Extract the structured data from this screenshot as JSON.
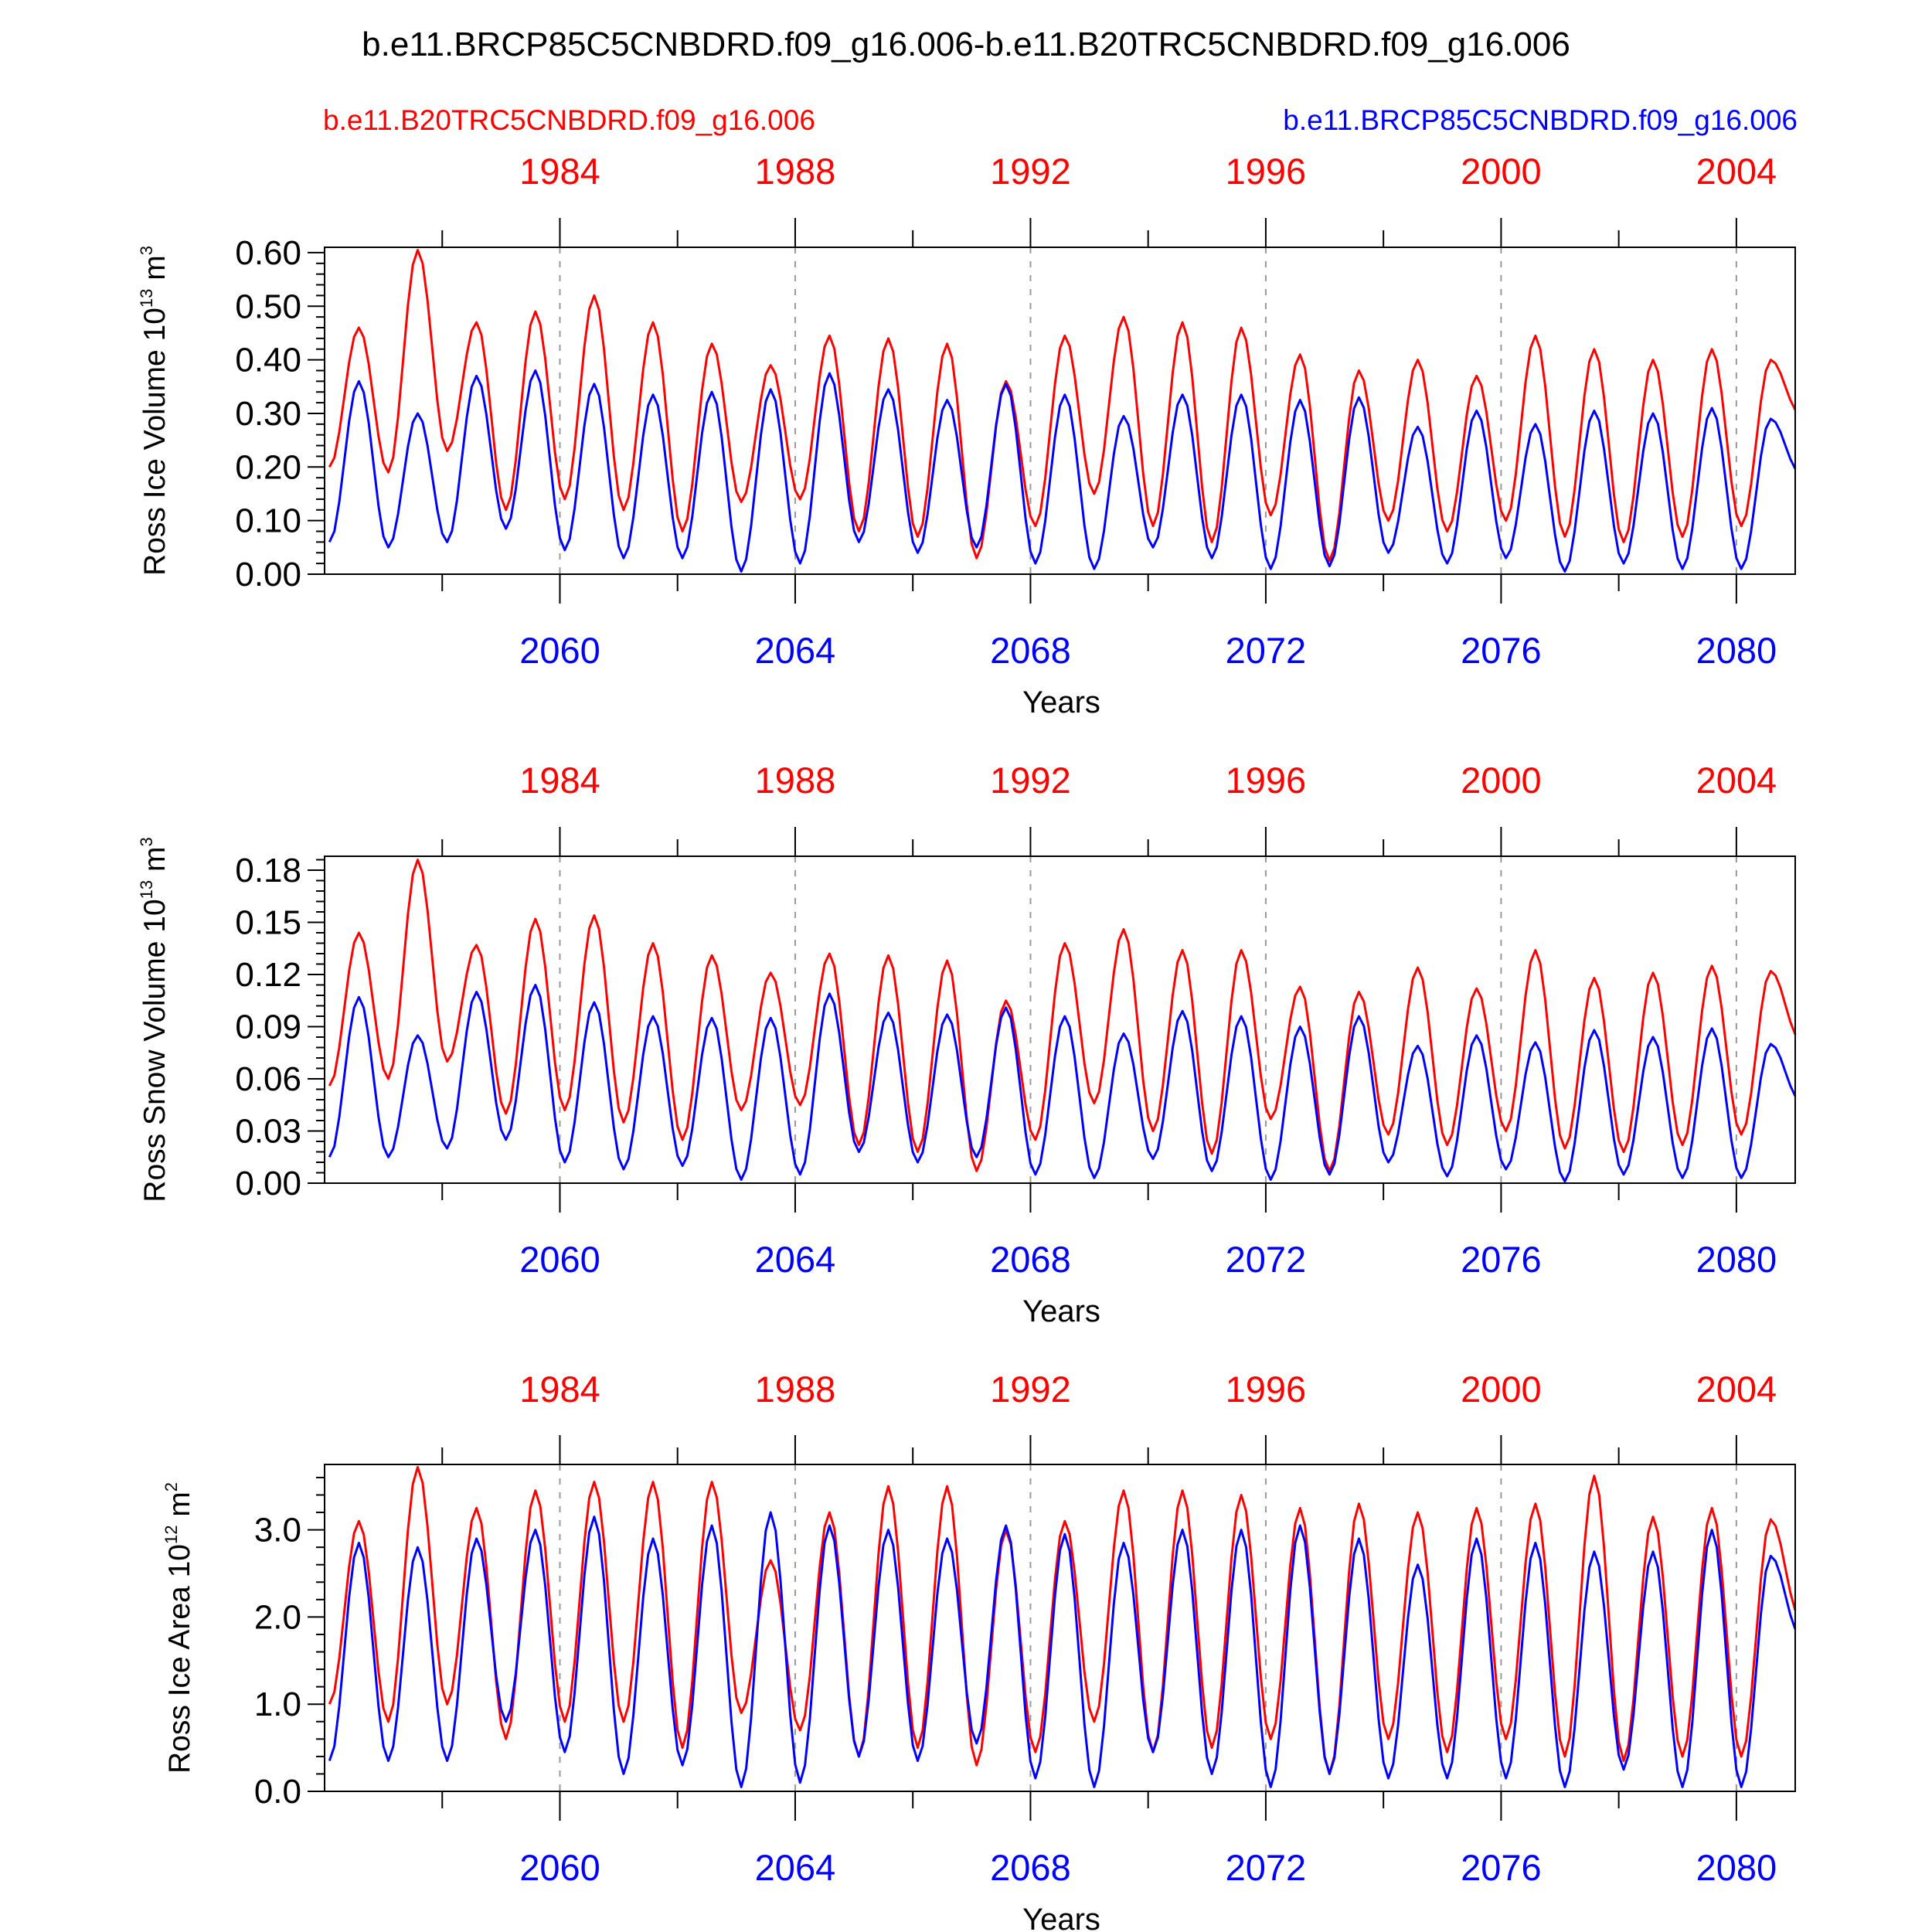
{
  "title": "b.e11.BRCP85C5CNBDRD.f09_g16.006-b.e11.B20TRC5CNBDRD.f09_g16.006",
  "legend": {
    "red_label": "b.e11.B20TRC5CNBDRD.f09_g16.006",
    "blue_label": "b.e11.BRCP85C5CNBDRD.f09_g16.006"
  },
  "colors": {
    "red": "#ff0000",
    "blue": "#0000ff",
    "axis": "#000000",
    "grid": "#999999"
  },
  "chart_data": [
    {
      "type": "line",
      "name": "ross-ice-volume",
      "ylabel": "Ross Ice Volume 10",
      "ylabel_exp": "13",
      "ylabel_unit": " m",
      "ylabel_unit_exp": "3",
      "xlabel": "Years",
      "ylim": [
        0,
        0.61
      ],
      "yticks": [
        0.0,
        0.1,
        0.2,
        0.3,
        0.4,
        0.5,
        0.6
      ],
      "ytick_labels": [
        "0.00",
        "0.10",
        "0.20",
        "0.30",
        "0.40",
        "0.50",
        "0.60"
      ],
      "xlim": [
        2056.0,
        2081.0
      ],
      "top_years": [
        "1984",
        "1988",
        "1992",
        "1996",
        "2000",
        "2004"
      ],
      "bottom_years": [
        "2060",
        "2064",
        "2068",
        "2072",
        "2076",
        "2080"
      ],
      "series": [
        {
          "name": "b.e11.B20TRC5CNBDRD.f09_g16.006",
          "color": "#ff0000",
          "peaks": [
            0.46,
            0.605,
            0.47,
            0.49,
            0.52,
            0.47,
            0.43,
            0.39,
            0.445,
            0.44,
            0.43,
            0.36,
            0.445,
            0.48,
            0.47,
            0.46,
            0.41,
            0.38,
            0.4,
            0.37,
            0.445,
            0.42,
            0.4,
            0.42,
            0.4
          ],
          "troughs": [
            0.2,
            0.19,
            0.23,
            0.12,
            0.14,
            0.12,
            0.08,
            0.135,
            0.14,
            0.08,
            0.07,
            0.03,
            0.09,
            0.15,
            0.09,
            0.06,
            0.11,
            0.025,
            0.1,
            0.08,
            0.1,
            0.07,
            0.06,
            0.07,
            0.09,
            0.3
          ]
        },
        {
          "name": "b.e11.BRCP85C5CNBDRD.f09_g16.006",
          "color": "#0000ff",
          "peaks": [
            0.36,
            0.3,
            0.37,
            0.38,
            0.355,
            0.335,
            0.34,
            0.345,
            0.375,
            0.345,
            0.325,
            0.355,
            0.335,
            0.295,
            0.335,
            0.335,
            0.325,
            0.33,
            0.275,
            0.305,
            0.28,
            0.305,
            0.3,
            0.31,
            0.29
          ],
          "troughs": [
            0.06,
            0.05,
            0.06,
            0.085,
            0.045,
            0.03,
            0.03,
            0.005,
            0.02,
            0.06,
            0.04,
            0.05,
            0.02,
            0.01,
            0.05,
            0.03,
            0.01,
            0.015,
            0.04,
            0.02,
            0.03,
            0.005,
            0.02,
            0.01,
            0.01,
            0.19
          ]
        }
      ]
    },
    {
      "type": "line",
      "name": "ross-snow-volume",
      "ylabel": "Ross Snow Volume 10",
      "ylabel_exp": "13",
      "ylabel_unit": " m",
      "ylabel_unit_exp": "3",
      "xlabel": "Years",
      "ylim": [
        0,
        0.188
      ],
      "yticks": [
        0.0,
        0.03,
        0.06,
        0.09,
        0.12,
        0.15,
        0.18
      ],
      "ytick_labels": [
        "0.00",
        "0.03",
        "0.06",
        "0.09",
        "0.12",
        "0.15",
        "0.18"
      ],
      "xlim": [
        2056.0,
        2081.0
      ],
      "top_years": [
        "1984",
        "1988",
        "1992",
        "1996",
        "2000",
        "2004"
      ],
      "bottom_years": [
        "2060",
        "2064",
        "2068",
        "2072",
        "2076",
        "2080"
      ],
      "series": [
        {
          "name": "b.e11.B20TRC5CNBDRD.f09_g16.006",
          "color": "#ff0000",
          "peaks": [
            0.144,
            0.186,
            0.137,
            0.152,
            0.154,
            0.138,
            0.131,
            0.121,
            0.132,
            0.131,
            0.128,
            0.105,
            0.138,
            0.146,
            0.134,
            0.134,
            0.113,
            0.11,
            0.124,
            0.112,
            0.134,
            0.118,
            0.121,
            0.125,
            0.122
          ],
          "troughs": [
            0.056,
            0.06,
            0.07,
            0.04,
            0.042,
            0.035,
            0.025,
            0.042,
            0.045,
            0.022,
            0.018,
            0.007,
            0.025,
            0.046,
            0.03,
            0.017,
            0.037,
            0.007,
            0.028,
            0.022,
            0.03,
            0.02,
            0.018,
            0.022,
            0.028,
            0.083
          ]
        },
        {
          "name": "b.e11.BRCP85C5CNBDRD.f09_g16.006",
          "color": "#0000ff",
          "peaks": [
            0.107,
            0.085,
            0.11,
            0.114,
            0.104,
            0.096,
            0.095,
            0.095,
            0.109,
            0.098,
            0.097,
            0.101,
            0.096,
            0.086,
            0.099,
            0.096,
            0.09,
            0.096,
            0.079,
            0.085,
            0.081,
            0.088,
            0.084,
            0.089,
            0.08
          ],
          "troughs": [
            0.015,
            0.015,
            0.02,
            0.025,
            0.012,
            0.008,
            0.01,
            0.002,
            0.005,
            0.018,
            0.012,
            0.015,
            0.005,
            0.003,
            0.014,
            0.007,
            0.002,
            0.005,
            0.012,
            0.004,
            0.008,
            0.001,
            0.005,
            0.003,
            0.003,
            0.048
          ]
        }
      ]
    },
    {
      "type": "line",
      "name": "ross-ice-area",
      "ylabel": "Ross Ice Area 10",
      "ylabel_exp": "12",
      "ylabel_unit": " m",
      "ylabel_unit_exp": "2",
      "xlabel": "Years",
      "ylim": [
        0,
        3.75
      ],
      "yticks": [
        0.0,
        1.0,
        2.0,
        3.0
      ],
      "ytick_labels": [
        "0.0",
        "1.0",
        "2.0",
        "3.0"
      ],
      "xlim": [
        2056.0,
        2081.0
      ],
      "top_years": [
        "1984",
        "1988",
        "1992",
        "1996",
        "2000",
        "2004"
      ],
      "bottom_years": [
        "2060",
        "2064",
        "2068",
        "2072",
        "2076",
        "2080"
      ],
      "series": [
        {
          "name": "b.e11.B20TRC5CNBDRD.f09_g16.006",
          "color": "#ff0000",
          "peaks": [
            3.1,
            3.72,
            3.25,
            3.45,
            3.55,
            3.55,
            3.55,
            2.65,
            3.2,
            3.5,
            3.5,
            3.0,
            3.1,
            3.45,
            3.45,
            3.4,
            3.25,
            3.3,
            3.2,
            3.25,
            3.3,
            3.62,
            3.15,
            3.25,
            3.12
          ],
          "troughs": [
            1.0,
            0.8,
            1.0,
            0.6,
            0.8,
            0.8,
            0.5,
            0.9,
            0.7,
            0.4,
            0.5,
            0.3,
            0.45,
            0.8,
            0.45,
            0.5,
            0.6,
            0.2,
            0.6,
            0.45,
            0.6,
            0.4,
            0.35,
            0.4,
            0.4,
            2.0
          ]
        },
        {
          "name": "b.e11.BRCP85C5CNBDRD.f09_g16.006",
          "color": "#0000ff",
          "peaks": [
            2.85,
            2.8,
            2.9,
            3.0,
            3.15,
            2.9,
            3.05,
            3.2,
            3.05,
            3.0,
            2.9,
            3.05,
            2.95,
            2.85,
            3.0,
            3.0,
            3.05,
            2.9,
            2.6,
            2.9,
            2.85,
            2.75,
            2.75,
            3.0,
            2.7
          ],
          "troughs": [
            0.35,
            0.35,
            0.35,
            0.8,
            0.45,
            0.2,
            0.3,
            0.05,
            0.1,
            0.4,
            0.35,
            0.55,
            0.15,
            0.05,
            0.45,
            0.2,
            0.05,
            0.2,
            0.15,
            0.15,
            0.15,
            0.05,
            0.25,
            0.05,
            0.05,
            1.8
          ]
        }
      ]
    }
  ]
}
